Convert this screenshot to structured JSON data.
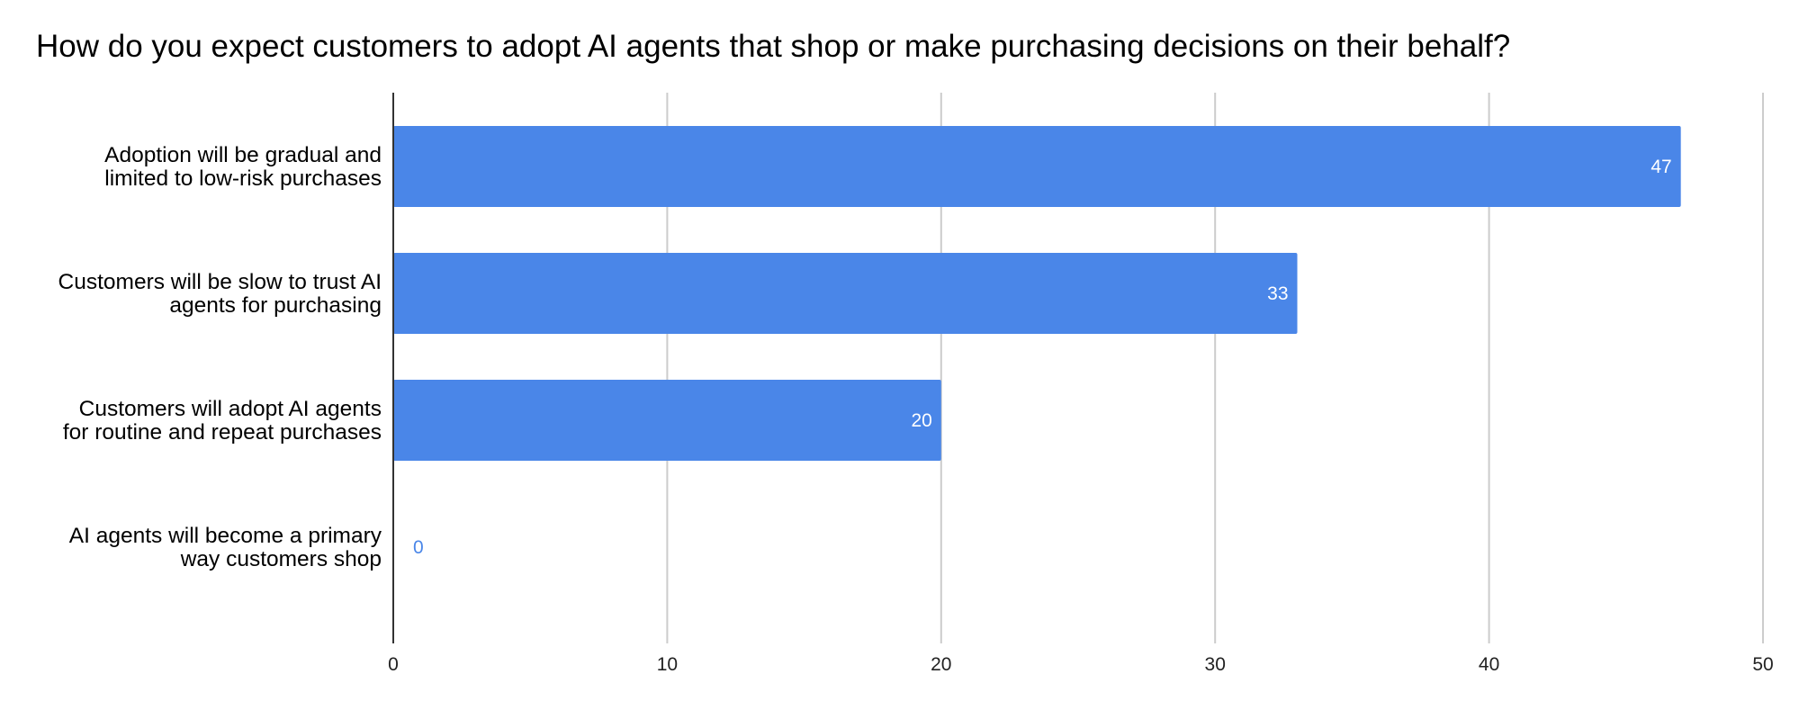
{
  "chart_data": {
    "type": "bar",
    "orientation": "horizontal",
    "title": "How do you expect customers to adopt AI agents that shop or make purchasing decisions on their behalf?",
    "categories": [
      [
        "Adoption will be gradual and",
        "limited to low-risk purchases"
      ],
      [
        "Customers will be slow to trust AI",
        "agents for purchasing"
      ],
      [
        "Customers will adopt AI agents",
        "for routine and repeat purchases"
      ],
      [
        "AI agents will become a primary",
        "way customers shop"
      ]
    ],
    "values": [
      47,
      33,
      20,
      0
    ],
    "data_labels": [
      "47",
      "33",
      "20",
      "0"
    ],
    "xlim": [
      0,
      50
    ],
    "x_ticks": [
      0,
      10,
      20,
      30,
      40,
      50
    ],
    "x_tick_labels": [
      "0",
      "10",
      "20",
      "30",
      "40",
      "50"
    ],
    "xlabel": "",
    "ylabel": "",
    "grid": true,
    "legend": "none",
    "colors": {
      "bar": "#4a86e8",
      "bar_label_inside": "#ffffff",
      "bar_label_outside": "#4a86e8",
      "grid": "#cccccc",
      "axis": "#333333"
    }
  }
}
